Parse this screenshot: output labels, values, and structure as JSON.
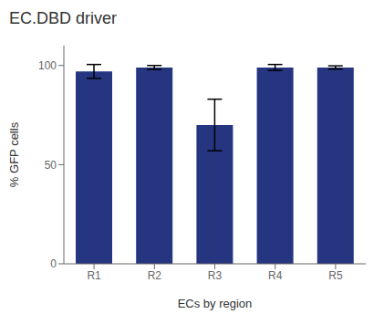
{
  "chart_data": {
    "type": "bar",
    "title": "EC.DBD driver",
    "xlabel": "ECs by region",
    "ylabel": "% GFP cells",
    "categories": [
      "R1",
      "R2",
      "R3",
      "R4",
      "R5"
    ],
    "values": [
      97,
      99,
      70,
      99,
      99
    ],
    "errors": [
      3.5,
      1.0,
      13,
      1.5,
      0.8
    ],
    "color": "#253580",
    "ylim": [
      0,
      110
    ],
    "yticks": [
      0,
      50,
      100
    ],
    "grid": false
  }
}
